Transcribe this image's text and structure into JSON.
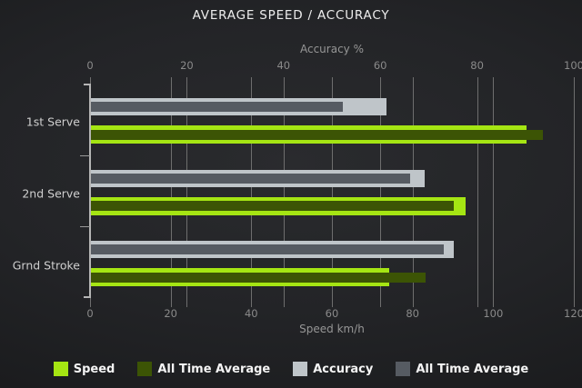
{
  "title": "AVERAGE SPEED / ACCURACY",
  "chart_data": {
    "type": "bar",
    "orientation": "horizontal",
    "grid": true,
    "categories": [
      "1st Serve",
      "2nd Serve",
      "Grnd Stroke"
    ],
    "axes": {
      "top": {
        "label": "Accuracy %",
        "min": 0,
        "max": 100,
        "ticks": [
          0,
          20,
          40,
          60,
          80,
          100
        ]
      },
      "bottom": {
        "label": "Speed km/h",
        "min": 0,
        "max": 120,
        "ticks": [
          0,
          20,
          40,
          60,
          80,
          100,
          120
        ]
      }
    },
    "series": [
      {
        "name": "Speed",
        "axis": "bottom",
        "color": "#a5e513",
        "values": [
          108,
          93,
          74
        ]
      },
      {
        "name": "All Time Average",
        "axis": "bottom",
        "color": "#3c5405",
        "values": [
          112,
          90,
          83
        ]
      },
      {
        "name": "Accuracy",
        "axis": "top",
        "color": "#bfc5c9",
        "values": [
          61,
          69,
          75
        ]
      },
      {
        "name": "All Time Average",
        "axis": "top",
        "color": "#565b62",
        "values": [
          52,
          66,
          73
        ]
      }
    ],
    "legend": {
      "position": "bottom",
      "items": [
        {
          "label": "Speed",
          "color": "#a5e513"
        },
        {
          "label": "All Time Average",
          "color": "#3c5405"
        },
        {
          "label": "Accuracy",
          "color": "#bfc5c9"
        },
        {
          "label": "All Time Average",
          "color": "#565b62"
        }
      ]
    }
  }
}
